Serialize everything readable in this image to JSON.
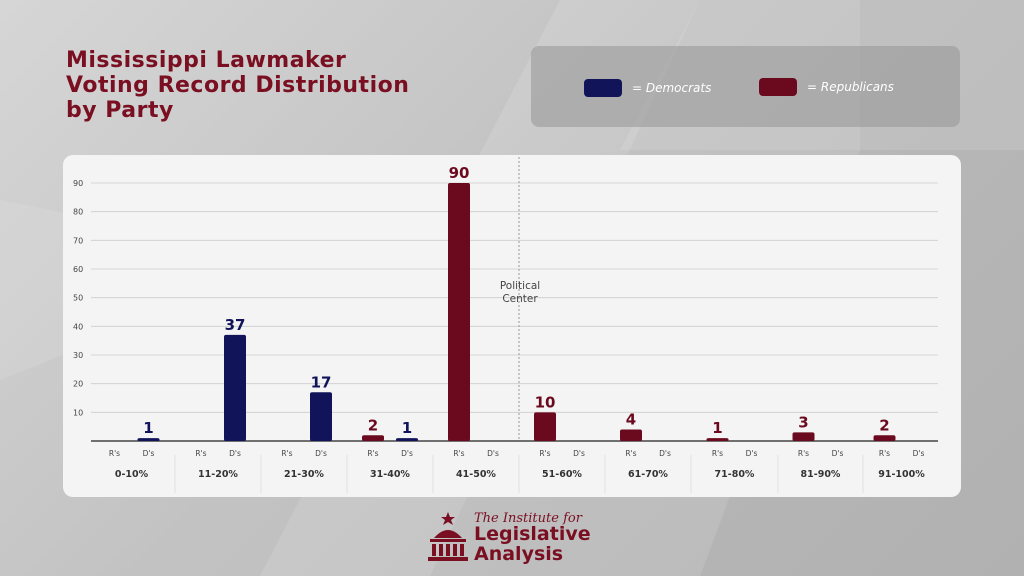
{
  "header": {
    "title": "Mississippi Lawmaker\nVoting Record Distribution\nby Party"
  },
  "legend": {
    "items": [
      {
        "label": "= Democrats",
        "color": "#12145a"
      },
      {
        "label": "= Republicans",
        "color": "#6b0a1e"
      }
    ]
  },
  "colors": {
    "democrat": "#12145a",
    "republican": "#6b0a1e",
    "title": "#7a0f22"
  },
  "footer": {
    "logo_line1": "The Institute for",
    "logo_line2": "Legislative\nAnalysis",
    "logo_icon": "capitol-dome-icon"
  },
  "chart_data": {
    "type": "bar",
    "categories": [
      "0-10%",
      "11-20%",
      "21-30%",
      "31-40%",
      "41-50%",
      "51-60%",
      "61-70%",
      "71-80%",
      "81-90%",
      "91-100%"
    ],
    "sub_labels": [
      "R's",
      "D's"
    ],
    "series": [
      {
        "name": "Republicans",
        "values": [
          0,
          0,
          0,
          2,
          90,
          10,
          4,
          1,
          3,
          2
        ]
      },
      {
        "name": "Democrats",
        "values": [
          1,
          37,
          17,
          1,
          0,
          0,
          0,
          0,
          0,
          0
        ]
      }
    ],
    "y_ticks": [
      10,
      20,
      30,
      40,
      50,
      60,
      70,
      80,
      90
    ],
    "ylim": [
      0,
      90
    ],
    "grid": true,
    "annotation": "Political\nCenter",
    "annotation_after_category": "41-50%"
  }
}
